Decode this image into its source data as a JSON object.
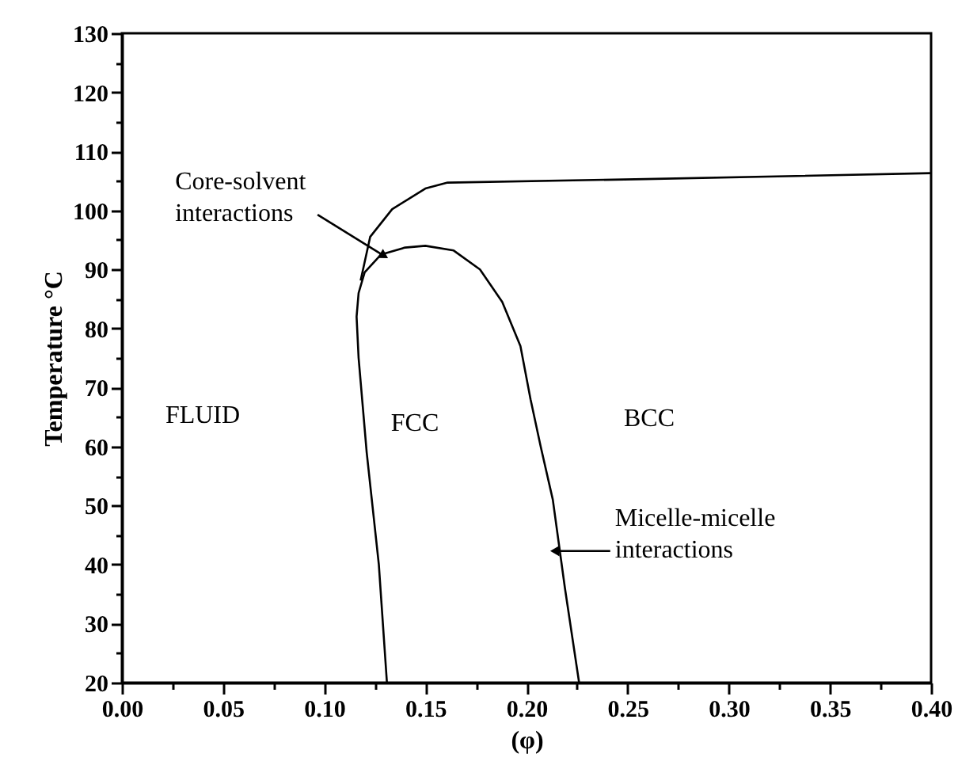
{
  "chart_data": {
    "type": "line",
    "xlabel": "(φ)",
    "ylabel": "Temperature °C",
    "xlim": [
      0,
      0.4
    ],
    "ylim": [
      20,
      130
    ],
    "xticks": [
      {
        "value": 0,
        "label": "0.00"
      },
      {
        "value": 0.025,
        "label": null
      },
      {
        "value": 0.05,
        "label": "0.05"
      },
      {
        "value": 0.075,
        "label": null
      },
      {
        "value": 0.1,
        "label": "0.10"
      },
      {
        "value": 0.125,
        "label": null
      },
      {
        "value": 0.15,
        "label": "0.15"
      },
      {
        "value": 0.175,
        "label": null
      },
      {
        "value": 0.2,
        "label": "0.20"
      },
      {
        "value": 0.225,
        "label": null
      },
      {
        "value": 0.25,
        "label": "0.25"
      },
      {
        "value": 0.275,
        "label": null
      },
      {
        "value": 0.3,
        "label": "0.30"
      },
      {
        "value": 0.325,
        "label": null
      },
      {
        "value": 0.35,
        "label": "0.35"
      },
      {
        "value": 0.375,
        "label": null
      },
      {
        "value": 0.4,
        "label": "0.40"
      }
    ],
    "yticks": [
      20,
      {
        "value": 25,
        "label": null
      },
      30,
      {
        "value": 35,
        "label": null
      },
      40,
      {
        "value": 45,
        "label": null
      },
      50,
      {
        "value": 55,
        "label": null
      },
      60,
      {
        "value": 65,
        "label": null
      },
      70,
      {
        "value": 75,
        "label": null
      },
      80,
      {
        "value": 85,
        "label": null
      },
      90,
      {
        "value": 95,
        "label": null
      },
      100,
      {
        "value": 105,
        "label": null
      },
      110,
      {
        "value": 115,
        "label": null
      },
      120,
      {
        "value": 125,
        "label": null
      },
      130
    ],
    "grid": false,
    "legend": false,
    "marker": "none",
    "line_style": "solid",
    "series": [
      {
        "color": "#000000",
        "x": [
          0.118,
          0.1227,
          0.1336,
          0.15,
          0.161,
          0.259,
          0.4
        ],
        "values": [
          88.1,
          95.5,
          100.2,
          103.7,
          104.7,
          105.3,
          106.3
        ]
      },
      {
        "color": "#000000",
        "x": [
          0.131,
          0.127,
          0.121,
          0.117,
          0.116,
          0.117,
          0.12,
          0.128,
          0.14,
          0.15,
          0.164,
          0.177,
          0.188,
          0.197,
          0.202,
          0.207,
          0.213,
          0.219,
          0.226
        ],
        "values": [
          20,
          40,
          59,
          75,
          82,
          86,
          89.5,
          92.5,
          93.7,
          94,
          93.2,
          90,
          84.5,
          77,
          68,
          60,
          51,
          36,
          20
        ]
      }
    ],
    "annotations": [
      "FLUID",
      "FCC",
      "BCC",
      {
        "text": "Core-solvent interactions",
        "x": 0.1296,
        "y": 92.3
      },
      {
        "text": "Micelle-micelle interactions",
        "x": 0.214,
        "y": 42.3
      }
    ]
  }
}
